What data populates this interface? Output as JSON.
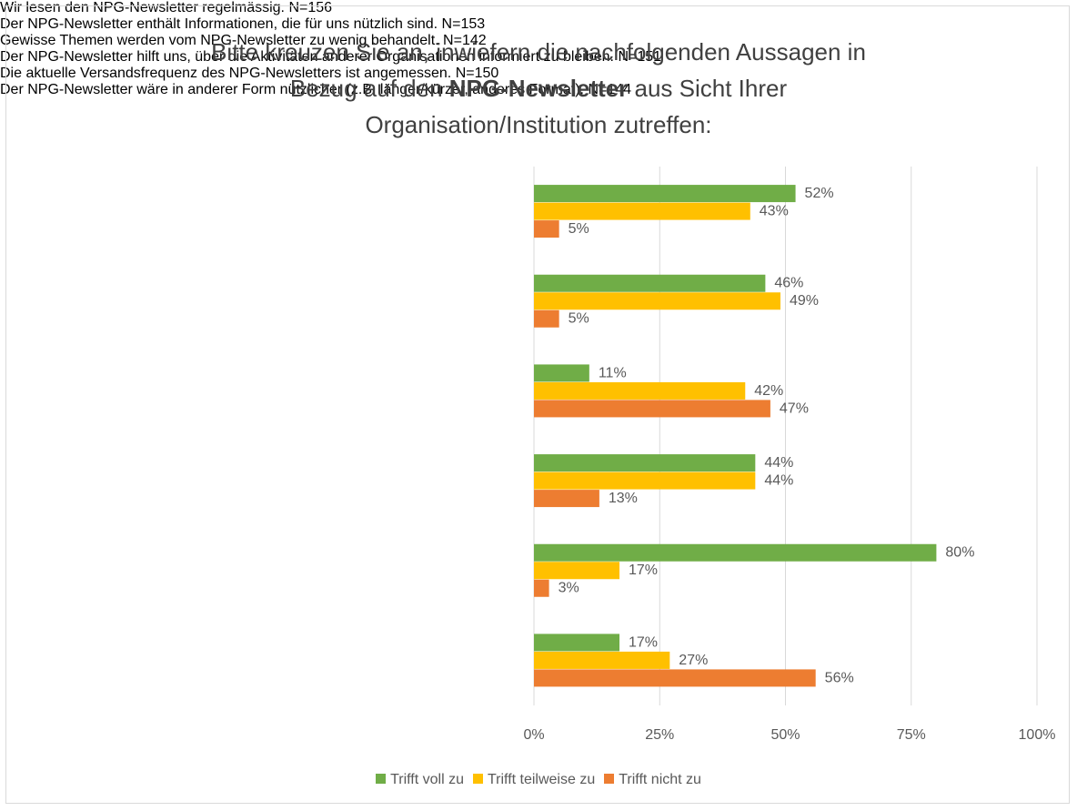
{
  "chart_data": {
    "type": "bar",
    "orientation": "horizontal",
    "title": [
      "Bitte kreuzen Sie an, inwiefern die nachfolgenden Aussagen in Bezug auf den ",
      "NPG-Newsletter",
      " aus Sicht Ihrer Organisation/Institution zutreffen:"
    ],
    "categories": [
      "Wir lesen den NPG-Newsletter regelmässig. N=156",
      "Der NPG-Newsletter enthält Informationen, die für uns nützlich sind. N=153",
      "Gewisse Themen werden vom NPG-Newsletter zu wenig behandelt. N=142",
      "Der NPG-Newsletter hilft uns, über die Aktivitäten anderer Organisationen informiert zu bleiben. N=151",
      "Die aktuelle Versandsfrequenz des NPG-Newsletters ist angemessen. N=150",
      "Der NPG-Newsletter wäre in anderer Form nützlicher (z.B. länger/kürzer, anderes Format). N=144"
    ],
    "series": [
      {
        "name": "Trifft voll zu",
        "color": "#70ad47",
        "values": [
          52,
          46,
          11,
          44,
          80,
          17
        ],
        "value_labels": [
          "52%",
          "46%",
          "11%",
          "44%",
          "80%",
          "17%"
        ]
      },
      {
        "name": "Trifft teilweise zu",
        "color": "#ffc000",
        "values": [
          43,
          49,
          42,
          44,
          17,
          27
        ],
        "value_labels": [
          "43%",
          "49%",
          "42%",
          "44%",
          "17%",
          "27%"
        ]
      },
      {
        "name": "Trifft nicht zu",
        "color": "#ed7d31",
        "values": [
          5,
          5,
          47,
          13,
          3,
          56
        ],
        "value_labels": [
          "5%",
          "5%",
          "47%",
          "13%",
          "3%",
          "56%"
        ]
      }
    ],
    "xlim": [
      0,
      100
    ],
    "xticks": [
      {
        "value": 0,
        "label": "0%"
      },
      {
        "value": 25,
        "label": "25%"
      },
      {
        "value": 50,
        "label": "50%"
      },
      {
        "value": 75,
        "label": "75%"
      },
      {
        "value": 100,
        "label": "100%"
      }
    ],
    "grid": true,
    "legend": "bottom"
  }
}
